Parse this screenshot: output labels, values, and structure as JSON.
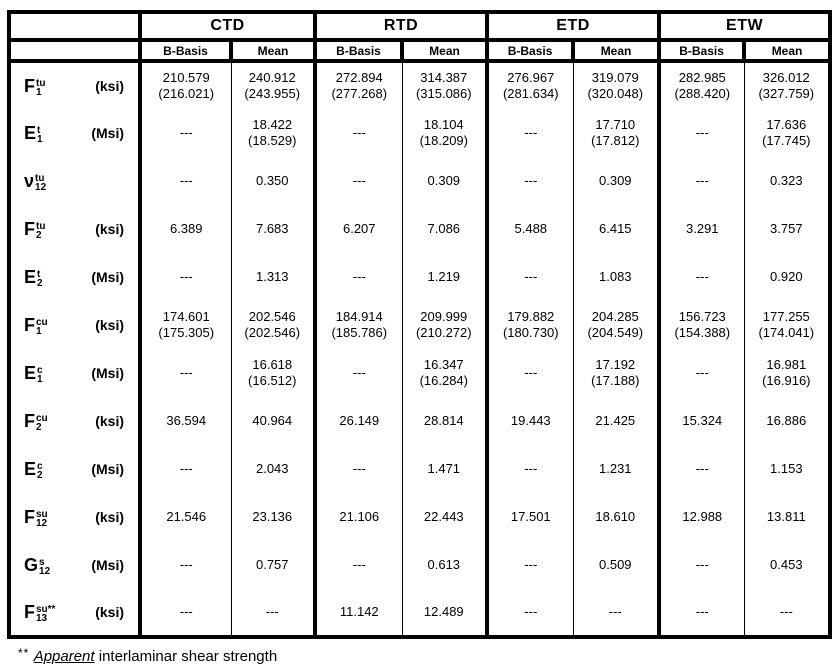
{
  "table": {
    "groups": [
      {
        "label": "CTD"
      },
      {
        "label": "RTD"
      },
      {
        "label": "ETD"
      },
      {
        "label": "ETW"
      }
    ],
    "subheaders": [
      "B-Basis",
      "Mean"
    ],
    "rows": [
      {
        "property": {
          "base": "F",
          "sub": "1",
          "sup": "tu"
        },
        "unit": "(ksi)",
        "values": [
          "210.579",
          "240.912",
          "272.894",
          "314.387",
          "276.967",
          "319.079",
          "282.985",
          "326.012"
        ],
        "values2": [
          "(216.021)",
          "(243.955)",
          "(277.268)",
          "(315.086)",
          "(281.634)",
          "(320.048)",
          "(288.420)",
          "(327.759)"
        ]
      },
      {
        "property": {
          "base": "E",
          "sub": "1",
          "sup": "t"
        },
        "unit": "(Msi)",
        "values": [
          "---",
          "18.422",
          "---",
          "18.104",
          "---",
          "17.710",
          "---",
          "17.636"
        ],
        "values2": [
          "",
          "(18.529)",
          "",
          "(18.209)",
          "",
          "(17.812)",
          "",
          "(17.745)"
        ]
      },
      {
        "property": {
          "base": "ν",
          "sub": "12",
          "sup": "tu"
        },
        "unit": "",
        "values": [
          "---",
          "0.350",
          "---",
          "0.309",
          "---",
          "0.309",
          "---",
          "0.323"
        ],
        "values2": [
          "",
          "",
          "",
          "",
          "",
          "",
          "",
          ""
        ]
      },
      {
        "property": {
          "base": "F",
          "sub": "2",
          "sup": "tu"
        },
        "unit": "(ksi)",
        "values": [
          "6.389",
          "7.683",
          "6.207",
          "7.086",
          "5.488",
          "6.415",
          "3.291",
          "3.757"
        ],
        "values2": [
          "",
          "",
          "",
          "",
          "",
          "",
          "",
          ""
        ]
      },
      {
        "property": {
          "base": "E",
          "sub": "2",
          "sup": "t"
        },
        "unit": "(Msi)",
        "values": [
          "---",
          "1.313",
          "---",
          "1.219",
          "---",
          "1.083",
          "---",
          "0.920"
        ],
        "values2": [
          "",
          "",
          "",
          "",
          "",
          "",
          "",
          ""
        ]
      },
      {
        "property": {
          "base": "F",
          "sub": "1",
          "sup": "cu"
        },
        "unit": "(ksi)",
        "values": [
          "174.601",
          "202.546",
          "184.914",
          "209.999",
          "179.882",
          "204.285",
          "156.723",
          "177.255"
        ],
        "values2": [
          "(175.305)",
          "(202.546)",
          "(185.786)",
          "(210.272)",
          "(180.730)",
          "(204.549)",
          "(154.388)",
          "(174.041)"
        ]
      },
      {
        "property": {
          "base": "E",
          "sub": "1",
          "sup": "c"
        },
        "unit": "(Msi)",
        "values": [
          "---",
          "16.618",
          "---",
          "16.347",
          "---",
          "17.192",
          "---",
          "16.981"
        ],
        "values2": [
          "",
          "(16.512)",
          "",
          "(16.284)",
          "",
          "(17.188)",
          "",
          "(16.916)"
        ]
      },
      {
        "property": {
          "base": "F",
          "sub": "2",
          "sup": "cu"
        },
        "unit": "(ksi)",
        "values": [
          "36.594",
          "40.964",
          "26.149",
          "28.814",
          "19.443",
          "21.425",
          "15.324",
          "16.886"
        ],
        "values2": [
          "",
          "",
          "",
          "",
          "",
          "",
          "",
          ""
        ]
      },
      {
        "property": {
          "base": "E",
          "sub": "2",
          "sup": "c"
        },
        "unit": "(Msi)",
        "values": [
          "---",
          "2.043",
          "---",
          "1.471",
          "---",
          "1.231",
          "---",
          "1.153"
        ],
        "values2": [
          "",
          "",
          "",
          "",
          "",
          "",
          "",
          ""
        ]
      },
      {
        "property": {
          "base": "F",
          "sub": "12",
          "sup": "su"
        },
        "unit": "(ksi)",
        "values": [
          "21.546",
          "23.136",
          "21.106",
          "22.443",
          "17.501",
          "18.610",
          "12.988",
          "13.811"
        ],
        "values2": [
          "",
          "",
          "",
          "",
          "",
          "",
          "",
          ""
        ]
      },
      {
        "property": {
          "base": "G",
          "sub": "12",
          "sup": "s"
        },
        "unit": "(Msi)",
        "values": [
          "---",
          "0.757",
          "---",
          "0.613",
          "---",
          "0.509",
          "---",
          "0.453"
        ],
        "values2": [
          "",
          "",
          "",
          "",
          "",
          "",
          "",
          ""
        ]
      },
      {
        "property": {
          "base": "F",
          "sub": "13",
          "sup": "su**"
        },
        "unit": "(ksi)",
        "values": [
          "---",
          "---",
          "11.142",
          "12.489",
          "---",
          "---",
          "---",
          "---"
        ],
        "values2": [
          "",
          "",
          "",
          "",
          "",
          "",
          "",
          ""
        ]
      }
    ],
    "footnote": {
      "marker": "** ",
      "emphasis": "Apparent",
      "text": " interlaminar shear strength"
    }
  }
}
